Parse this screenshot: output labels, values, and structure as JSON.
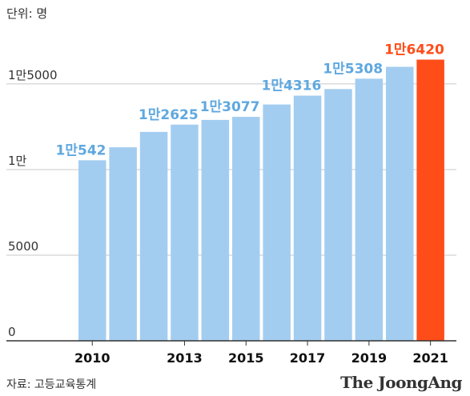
{
  "unit_label": "단위: 명",
  "source_label": "자료: 고등교육통계",
  "brand": "The JoongAng",
  "colors": {
    "bar": "#a3cdf0",
    "highlight": "#ff4d1a",
    "label": "#5fa8e0",
    "grid": "#c8c8c8",
    "axis": "#333333"
  },
  "chart_data": {
    "type": "bar",
    "categories": [
      "2010",
      "2011",
      "2012",
      "2013",
      "2014",
      "2015",
      "2016",
      "2017",
      "2018",
      "2019",
      "2020",
      "2021"
    ],
    "values": [
      10542,
      11300,
      12200,
      12625,
      12900,
      13077,
      13800,
      14316,
      14700,
      15308,
      16000,
      16420
    ],
    "highlight_index": 11,
    "ylim": [
      0,
      18500
    ],
    "yticks": [
      {
        "value": 0,
        "label": "0"
      },
      {
        "value": 5000,
        "label": "5000"
      },
      {
        "value": 10000,
        "label": "1만"
      },
      {
        "value": 15000,
        "label": "1만5000"
      }
    ],
    "xtick_labels": [
      {
        "index": 0,
        "label": "2010"
      },
      {
        "index": 3,
        "label": "2013"
      },
      {
        "index": 5,
        "label": "2015"
      },
      {
        "index": 7,
        "label": "2017"
      },
      {
        "index": 9,
        "label": "2019"
      },
      {
        "index": 11,
        "label": "2021"
      }
    ],
    "data_labels": [
      {
        "index": 0,
        "label": "1만542"
      },
      {
        "index": 3,
        "label": "1만2625"
      },
      {
        "index": 5,
        "label": "1만3077"
      },
      {
        "index": 7,
        "label": "1만4316"
      },
      {
        "index": 9,
        "label": "1만5308"
      },
      {
        "index": 11,
        "label": "1만6420"
      }
    ],
    "grid": true
  }
}
